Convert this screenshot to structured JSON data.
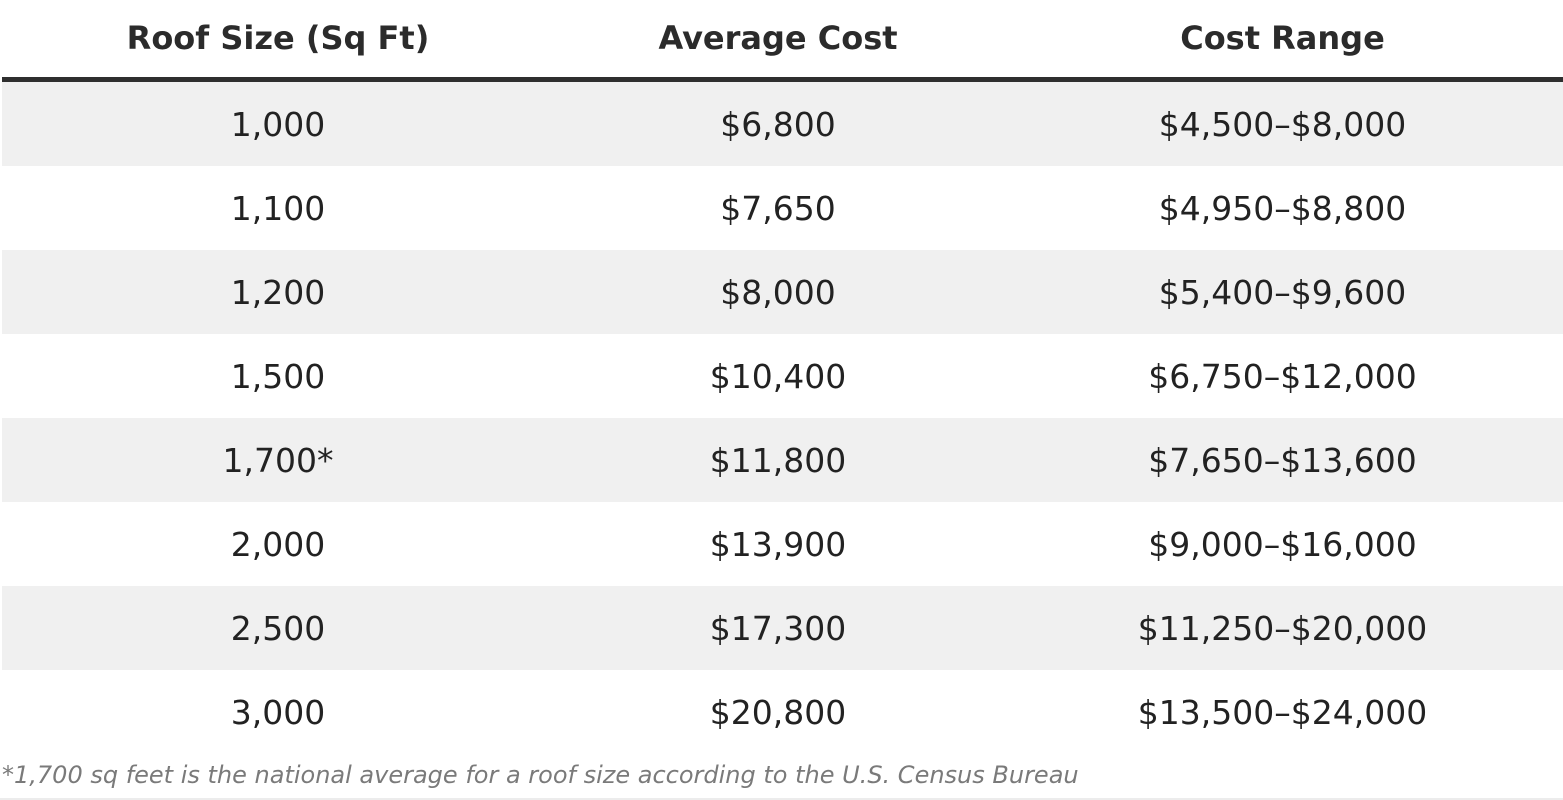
{
  "table": {
    "headers": [
      "Roof Size (Sq Ft)",
      "Average Cost",
      "Cost Range"
    ],
    "rows": [
      [
        "1,000",
        "$6,800",
        "$4,500–$8,000"
      ],
      [
        "1,100",
        "$7,650",
        "$4,950–$8,800"
      ],
      [
        "1,200",
        "$8,000",
        "$5,400–$9,600"
      ],
      [
        "1,500",
        "$10,400",
        "$6,750–$12,000"
      ],
      [
        "1,700*",
        "$11,800",
        "$7,650–$13,600"
      ],
      [
        "2,000",
        "$13,900",
        "$9,000–$16,000"
      ],
      [
        "2,500",
        "$17,300",
        "$11,250–$20,000"
      ],
      [
        "3,000",
        "$20,800",
        "$13,500–$24,000"
      ]
    ]
  },
  "footnote": "*1,700 sq feet is the national average for a roof size according to the U.S. Census Bureau",
  "colors": {
    "header_rule": "#2f2f2f",
    "stripe": "#f0f0f0",
    "footnote_text": "#7a7a7a"
  }
}
